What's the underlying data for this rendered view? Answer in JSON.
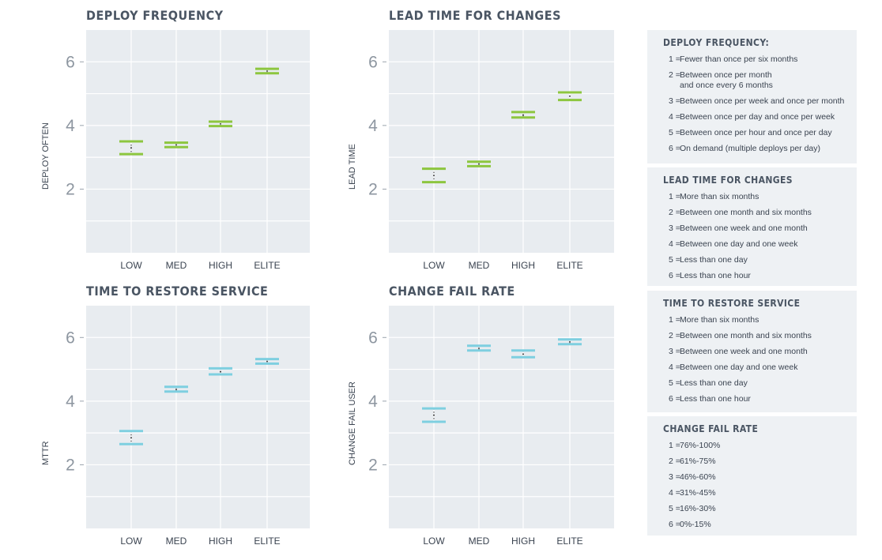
{
  "chart_data": [
    {
      "type": "errorbar",
      "title": "DEPLOY FREQUENCY",
      "ylabel": "DEPLOY OFTEN",
      "categories": [
        "LOW",
        "MED",
        "HIGH",
        "ELITE"
      ],
      "ylim": [
        0,
        7
      ],
      "yticks": [
        2,
        4,
        6
      ],
      "color": "#8dc63f",
      "series": [
        {
          "low": 3.1,
          "high": 3.5,
          "center": 3.3
        },
        {
          "low": 3.32,
          "high": 3.46,
          "center": 3.39
        },
        {
          "low": 3.98,
          "high": 4.12,
          "center": 4.05
        },
        {
          "low": 5.64,
          "high": 5.78,
          "center": 5.71
        }
      ]
    },
    {
      "type": "errorbar",
      "title": "LEAD TIME FOR CHANGES",
      "ylabel": "LEAD TIME",
      "categories": [
        "LOW",
        "MED",
        "HIGH",
        "ELITE"
      ],
      "ylim": [
        0,
        7
      ],
      "yticks": [
        2,
        4,
        6
      ],
      "color": "#8dc63f",
      "series": [
        {
          "low": 2.22,
          "high": 2.64,
          "center": 2.43
        },
        {
          "low": 2.72,
          "high": 2.86,
          "center": 2.79
        },
        {
          "low": 4.25,
          "high": 4.42,
          "center": 4.33
        },
        {
          "low": 4.8,
          "high": 5.04,
          "center": 4.92
        }
      ]
    },
    {
      "type": "errorbar",
      "title": "TIME TO RESTORE SERVICE",
      "ylabel": "MTTR",
      "categories": [
        "LOW",
        "MED",
        "HIGH",
        "ELITE"
      ],
      "ylim": [
        0,
        7
      ],
      "yticks": [
        2,
        4,
        6
      ],
      "color": "#7ecfe0",
      "series": [
        {
          "low": 2.65,
          "high": 3.06,
          "center": 2.85
        },
        {
          "low": 4.3,
          "high": 4.45,
          "center": 4.37
        },
        {
          "low": 4.84,
          "high": 5.03,
          "center": 4.93
        },
        {
          "low": 5.18,
          "high": 5.32,
          "center": 5.25
        }
      ]
    },
    {
      "type": "errorbar",
      "title": "CHANGE FAIL RATE",
      "ylabel": "CHANGE FAIL USER",
      "categories": [
        "LOW",
        "MED",
        "HIGH",
        "ELITE"
      ],
      "ylim": [
        0,
        7
      ],
      "yticks": [
        2,
        4,
        6
      ],
      "color": "#7ecfe0",
      "series": [
        {
          "low": 3.35,
          "high": 3.77,
          "center": 3.56
        },
        {
          "low": 5.59,
          "high": 5.74,
          "center": 5.66
        },
        {
          "low": 5.38,
          "high": 5.59,
          "center": 5.48
        },
        {
          "low": 5.79,
          "high": 5.94,
          "center": 5.86
        }
      ]
    }
  ],
  "legend": [
    {
      "title": "DEPLOY FREQUENCY:",
      "items": [
        {
          "num": "1 =",
          "text": "Fewer than once per six months"
        },
        {
          "num": "2 =",
          "text": "Between once per month\nand once every 6 months"
        },
        {
          "num": "3 =",
          "text": "Between once per week and once per month"
        },
        {
          "num": "4 =",
          "text": "Between once per day and once per week"
        },
        {
          "num": "5 =",
          "text": "Between once per hour and once per day"
        },
        {
          "num": "6 =",
          "text": "On demand (multiple deploys per day)"
        }
      ]
    },
    {
      "title": "LEAD TIME FOR CHANGES",
      "items": [
        {
          "num": "1 =",
          "text": "More than six months"
        },
        {
          "num": "2 =",
          "text": "Between one month and six months"
        },
        {
          "num": "3 =",
          "text": "Between one week and one month"
        },
        {
          "num": "4 =",
          "text": "Between one day and one week"
        },
        {
          "num": "5 =",
          "text": "Less than one day"
        },
        {
          "num": "6 =",
          "text": "Less than one hour"
        }
      ]
    },
    {
      "title": "TIME TO RESTORE SERVICE",
      "items": [
        {
          "num": "1 =",
          "text": "More than six months"
        },
        {
          "num": "2 =",
          "text": "Between one month and six months"
        },
        {
          "num": "3 =",
          "text": "Between one week and one month"
        },
        {
          "num": "4 =",
          "text": "Between one day and one week"
        },
        {
          "num": "5 =",
          "text": "Less than one day"
        },
        {
          "num": "6 =",
          "text": "Less than one hour"
        }
      ]
    },
    {
      "title": "CHANGE FAIL RATE",
      "items": [
        {
          "num": "1 =",
          "text": "76%-100%"
        },
        {
          "num": "2 =",
          "text": "61%-75%"
        },
        {
          "num": "3 =",
          "text": "46%-60%"
        },
        {
          "num": "4 =",
          "text": "31%-45%"
        },
        {
          "num": "5 =",
          "text": "16%-30%"
        },
        {
          "num": "6 =",
          "text": "0%-15%"
        }
      ]
    }
  ]
}
